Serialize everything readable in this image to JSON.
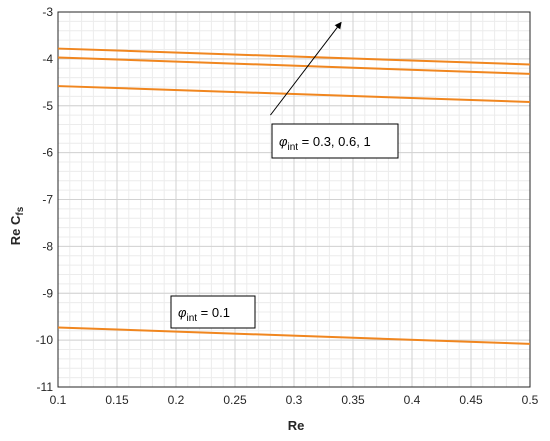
{
  "chart_data": {
    "type": "line",
    "xlabel": "Re",
    "ylabel": {
      "main": "Re C",
      "sub": "fs"
    },
    "xlim": [
      0.1,
      0.5
    ],
    "ylim": [
      -11,
      -3
    ],
    "xticks": [
      "0.1",
      "0.15",
      "0.2",
      "0.25",
      "0.3",
      "0.35",
      "0.4",
      "0.45",
      "0.5"
    ],
    "yticks": [
      "-3",
      "-4",
      "-5",
      "-6",
      "-7",
      "-8",
      "-9",
      "-10",
      "-11"
    ],
    "grid": true,
    "minor_grid": true,
    "line_color": "#f0861f",
    "series": [
      {
        "x": [
          0.1,
          0.5
        ],
        "y": [
          -3.78,
          -4.12
        ]
      },
      {
        "x": [
          0.1,
          0.5
        ],
        "y": [
          -3.97,
          -4.32
        ]
      },
      {
        "x": [
          0.1,
          0.5
        ],
        "y": [
          -4.58,
          -4.92
        ]
      },
      {
        "x": [
          0.1,
          0.5
        ],
        "y": [
          -9.73,
          -10.08
        ]
      }
    ],
    "annotations": [
      {
        "symbol": "φ",
        "sub": "int",
        "text": " = 0.3, 0.6, 1"
      },
      {
        "symbol": "φ",
        "sub": "int",
        "text": " = 0.1"
      }
    ],
    "arrow": {
      "from": [
        0.28,
        -5.2
      ],
      "to": [
        0.34,
        -3.22
      ]
    }
  }
}
